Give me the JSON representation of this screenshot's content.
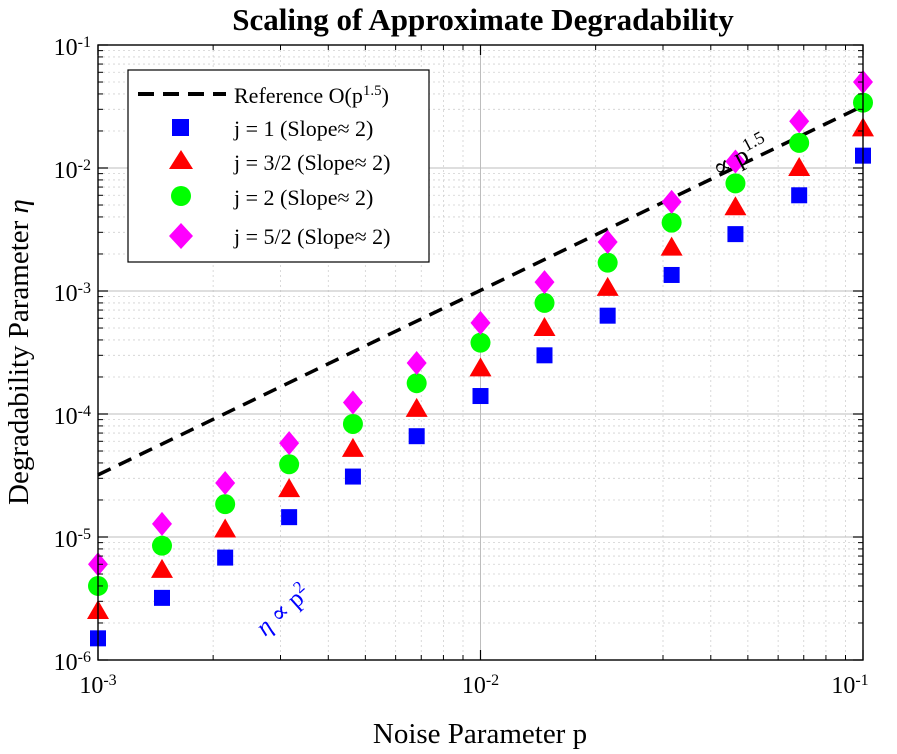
{
  "chart_data": {
    "type": "scatter",
    "title": "Scaling of Approximate Degradability",
    "xlabel": "Noise Parameter p",
    "ylabel_main": "Degradability Parameter ",
    "ylabel_symbol": "η",
    "xscale": "log",
    "yscale": "log",
    "xlim": [
      0.001,
      0.1
    ],
    "ylim": [
      1e-06,
      0.1
    ],
    "grid": true,
    "legend_position": "top-left",
    "x_ticks": [
      {
        "value": 0.001,
        "base": "10",
        "exp": "-3"
      },
      {
        "value": 0.01,
        "base": "10",
        "exp": "-2"
      },
      {
        "value": 0.1,
        "base": "10",
        "exp": "-1"
      }
    ],
    "y_ticks": [
      {
        "value": 1e-06,
        "base": "10",
        "exp": "-6"
      },
      {
        "value": 1e-05,
        "base": "10",
        "exp": "-5"
      },
      {
        "value": 0.0001,
        "base": "10",
        "exp": "-4"
      },
      {
        "value": 0.001,
        "base": "10",
        "exp": "-3"
      },
      {
        "value": 0.01,
        "base": "10",
        "exp": "-2"
      },
      {
        "value": 0.1,
        "base": "10",
        "exp": "-1"
      }
    ],
    "x": [
      0.001,
      0.00147,
      0.00215,
      0.00316,
      0.00464,
      0.00681,
      0.01,
      0.0147,
      0.0215,
      0.0316,
      0.0464,
      0.0681,
      0.1
    ],
    "reference": {
      "label_main": "Reference O(p",
      "label_exp": "1.5",
      "label_close": ")",
      "x_range": [
        0.001,
        0.1
      ],
      "y_range": [
        3.2e-05,
        0.032
      ],
      "annotation_main": "∝ p",
      "annotation_exp": "1.5",
      "color": "#000000"
    },
    "series": [
      {
        "name": "j = 1 (Slope≈ 2)",
        "marker": "square",
        "color": "#0000ff",
        "values": [
          1.5e-06,
          3.2e-06,
          6.8e-06,
          1.45e-05,
          3.1e-05,
          6.6e-05,
          0.00014,
          0.0003,
          0.00063,
          0.00135,
          0.0029,
          0.006,
          0.0126
        ]
      },
      {
        "name": "j = 3/2 (Slope≈ 2)",
        "marker": "triangle",
        "color": "#ff0000",
        "values": [
          2.5e-06,
          5.4e-06,
          1.15e-05,
          2.45e-05,
          5.2e-05,
          0.00011,
          0.000235,
          0.0005,
          0.00106,
          0.00225,
          0.0048,
          0.01,
          0.021
        ]
      },
      {
        "name": "j = 2 (Slope≈ 2)",
        "marker": "circle",
        "color": "#00ff00",
        "values": [
          4e-06,
          8.5e-06,
          1.85e-05,
          3.9e-05,
          8.3e-05,
          0.000178,
          0.00038,
          0.0008,
          0.0017,
          0.0036,
          0.0075,
          0.016,
          0.034
        ]
      },
      {
        "name": "j = 5/2 (Slope≈ 2)",
        "marker": "diamond",
        "color": "#ff00ff",
        "values": [
          6e-06,
          1.28e-05,
          2.75e-05,
          5.8e-05,
          0.000124,
          0.00026,
          0.00055,
          0.00118,
          0.0025,
          0.0053,
          0.0113,
          0.024,
          0.05
        ]
      }
    ],
    "slope_annotation": {
      "symbol": "η",
      "text": " ∝ p",
      "exp": "2",
      "color": "#0000ff",
      "x": 0.00265,
      "y": 1.8e-06
    }
  }
}
